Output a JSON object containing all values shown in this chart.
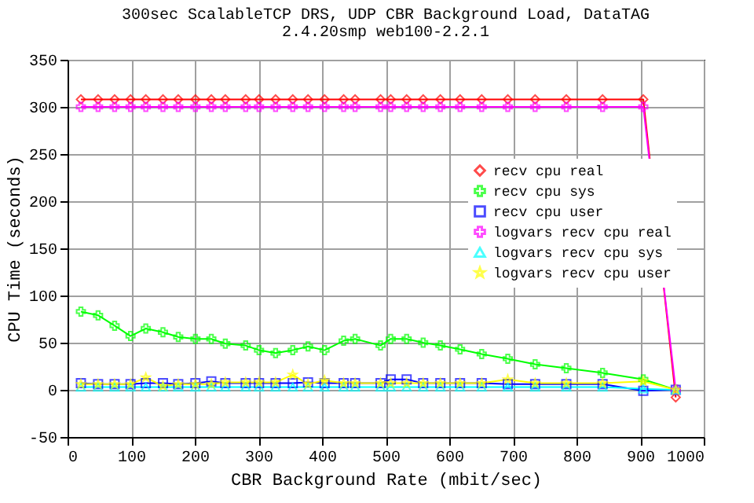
{
  "chart_data": {
    "type": "line",
    "title": "300sec ScalableTCP DRS, UDP CBR Background Load, DataTAG",
    "subtitle": "2.4.20smp web100-2.2.1",
    "xlabel": "CBR Background Rate (mbit/sec)",
    "ylabel": "CPU Time (seconds)",
    "x": [
      21,
      48,
      74,
      99,
      123,
      150,
      174,
      201,
      226,
      248,
      280,
      301,
      327,
      354,
      378,
      404,
      434,
      452,
      492,
      508,
      533,
      559,
      586,
      617,
      651,
      692,
      735,
      784,
      841,
      905,
      956
    ],
    "series": [
      {
        "name": "recv cpu real",
        "color": "#ff0000",
        "marker": "diamond",
        "values": [
          308,
          308,
          308,
          308,
          308,
          308,
          308,
          308,
          308,
          308,
          308,
          308,
          308,
          308,
          308,
          308,
          308,
          308,
          308,
          308,
          308,
          308,
          308,
          308,
          308,
          308,
          308,
          308,
          308,
          308,
          -8
        ]
      },
      {
        "name": "recv cpu sys",
        "color": "#00ff00",
        "marker": "cross",
        "values": [
          83,
          79,
          68,
          57,
          65,
          61,
          56,
          54,
          54,
          49,
          47,
          42,
          39,
          42,
          46,
          42,
          52,
          54,
          47,
          54,
          54,
          50,
          47,
          43,
          38,
          33,
          27,
          23,
          18,
          11,
          0
        ]
      },
      {
        "name": "recv cpu user",
        "color": "#0000ff",
        "marker": "square",
        "values": [
          7,
          6,
          6,
          6,
          7,
          7,
          6,
          7,
          9,
          7,
          7,
          7,
          7,
          7,
          8,
          7,
          7,
          7,
          7,
          11,
          11,
          7,
          7,
          7,
          7,
          6,
          6,
          6,
          6,
          -1,
          0
        ]
      },
      {
        "name": "logvars recv cpu real",
        "color": "#ff00ff",
        "marker": "cross",
        "values": [
          300,
          300,
          300,
          300,
          300,
          300,
          300,
          300,
          300,
          300,
          300,
          300,
          300,
          300,
          300,
          300,
          300,
          300,
          300,
          300,
          300,
          300,
          300,
          300,
          300,
          300,
          300,
          300,
          300,
          300,
          0
        ]
      },
      {
        "name": "logvars recv cpu sys",
        "color": "#00ffff",
        "marker": "triangle",
        "values": [
          3,
          3,
          3,
          3,
          3,
          3,
          3,
          3,
          3,
          3,
          3,
          3,
          3,
          3,
          3,
          3,
          3,
          3,
          3,
          3,
          3,
          3,
          3,
          3,
          3,
          3,
          3,
          3,
          3,
          1,
          0
        ]
      },
      {
        "name": "logvars recv cpu user",
        "color": "#ffff00",
        "marker": "star",
        "values": [
          6,
          6,
          6,
          6,
          13,
          4,
          6,
          6,
          6,
          8,
          8,
          8,
          8,
          16,
          6,
          10,
          7,
          7,
          7,
          7,
          7,
          7,
          7,
          7,
          7,
          11,
          7,
          7,
          7,
          9,
          0
        ]
      }
    ],
    "xlim": [
      0,
      1000
    ],
    "xticks": [
      0,
      100,
      200,
      300,
      400,
      500,
      600,
      700,
      800,
      900,
      {
        "value": 1000,
        "label": "1000"
      }
    ],
    "ylim": [
      -50,
      350
    ],
    "yticks": [
      -50,
      0,
      50,
      100,
      150,
      200,
      250,
      300,
      350
    ],
    "grid": true,
    "legend": "top right",
    "line_style": "solid"
  }
}
